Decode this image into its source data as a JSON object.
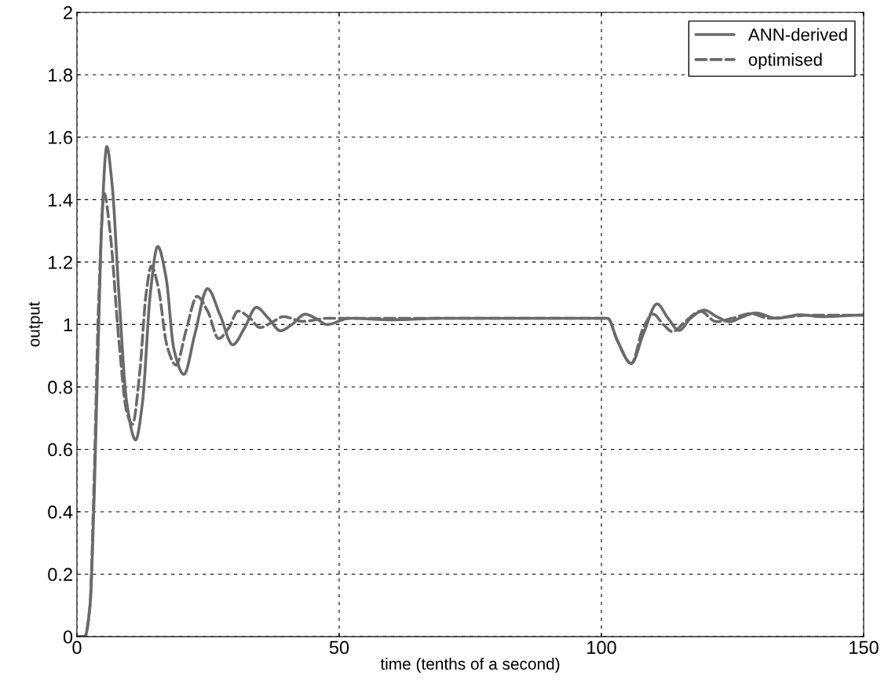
{
  "chart_data": {
    "type": "line",
    "xlabel": "time (tenths of a second)",
    "ylabel": "output",
    "xlim": [
      0,
      150
    ],
    "ylim": [
      0,
      2
    ],
    "xticks": [
      0,
      50,
      100,
      150
    ],
    "yticks": [
      0,
      0.2,
      0.4,
      0.6,
      0.8,
      1,
      1.2,
      1.4,
      1.6,
      1.8,
      2
    ],
    "grid": true,
    "legend": "top right",
    "series": [
      {
        "name": "ANN-derived",
        "color": "#6a6a6a",
        "line_style": "solid",
        "x": [
          0,
          1.5,
          2.5,
          3.2,
          4,
          4.8,
          5.7,
          6.7,
          8,
          9.5,
          11.2,
          12.5,
          14,
          15.4,
          17,
          18.5,
          20.4,
          22.5,
          24.9,
          27.3,
          29.7,
          32,
          34.2,
          36.5,
          38.8,
          41,
          43.5,
          45.5,
          47.7,
          52,
          60,
          70,
          100,
          101.2,
          103,
          105.7,
          108,
          110.6,
          112.7,
          114.8,
          117,
          119.6,
          122,
          124.4,
          127,
          129.4,
          133.4,
          137.9,
          142,
          150
        ],
        "values": [
          0,
          0,
          0.1,
          0.4,
          0.9,
          1.35,
          1.57,
          1.45,
          1.1,
          0.75,
          0.63,
          0.75,
          1.1,
          1.25,
          1.15,
          0.92,
          0.84,
          0.97,
          1.115,
          1.03,
          0.935,
          0.99,
          1.055,
          1.02,
          0.98,
          1.0,
          1.033,
          1.02,
          1.0,
          1.02,
          1.015,
          1.02,
          1.02,
          1.02,
          0.95,
          0.875,
          0.97,
          1.066,
          1.02,
          0.981,
          1.02,
          1.046,
          1.025,
          1.009,
          1.025,
          1.037,
          1.02,
          1.031,
          1.025,
          1.03
        ]
      },
      {
        "name": "optimised",
        "color": "#6a6a6a",
        "line_style": "dashed",
        "x": [
          0,
          1.5,
          2.5,
          3.2,
          4.2,
          5.2,
          6.3,
          8,
          9.5,
          10.6,
          12,
          13.2,
          14.2,
          15.5,
          17.2,
          18.9,
          20.8,
          22.9,
          25,
          27,
          29,
          30.7,
          33,
          34.9,
          37,
          39.4,
          43,
          48,
          70,
          100,
          101.2,
          103,
          105.7,
          108,
          109.9,
          111.8,
          113.6,
          116,
          118.9,
          121.9,
          125,
          128.5,
          131.9,
          140,
          150
        ],
        "values": [
          0,
          0,
          0.1,
          0.45,
          1.1,
          1.42,
          1.3,
          0.95,
          0.72,
          0.68,
          0.85,
          1.1,
          1.187,
          1.12,
          0.93,
          0.87,
          0.98,
          1.09,
          1.04,
          0.955,
          0.99,
          1.043,
          1.02,
          0.99,
          1.005,
          1.025,
          1.01,
          1.02,
          1.02,
          1.02,
          1.02,
          0.95,
          0.875,
          0.99,
          1.033,
          1.0,
          0.977,
          1.01,
          1.042,
          1.009,
          1.02,
          1.035,
          1.02,
          1.03,
          1.03
        ]
      }
    ]
  }
}
